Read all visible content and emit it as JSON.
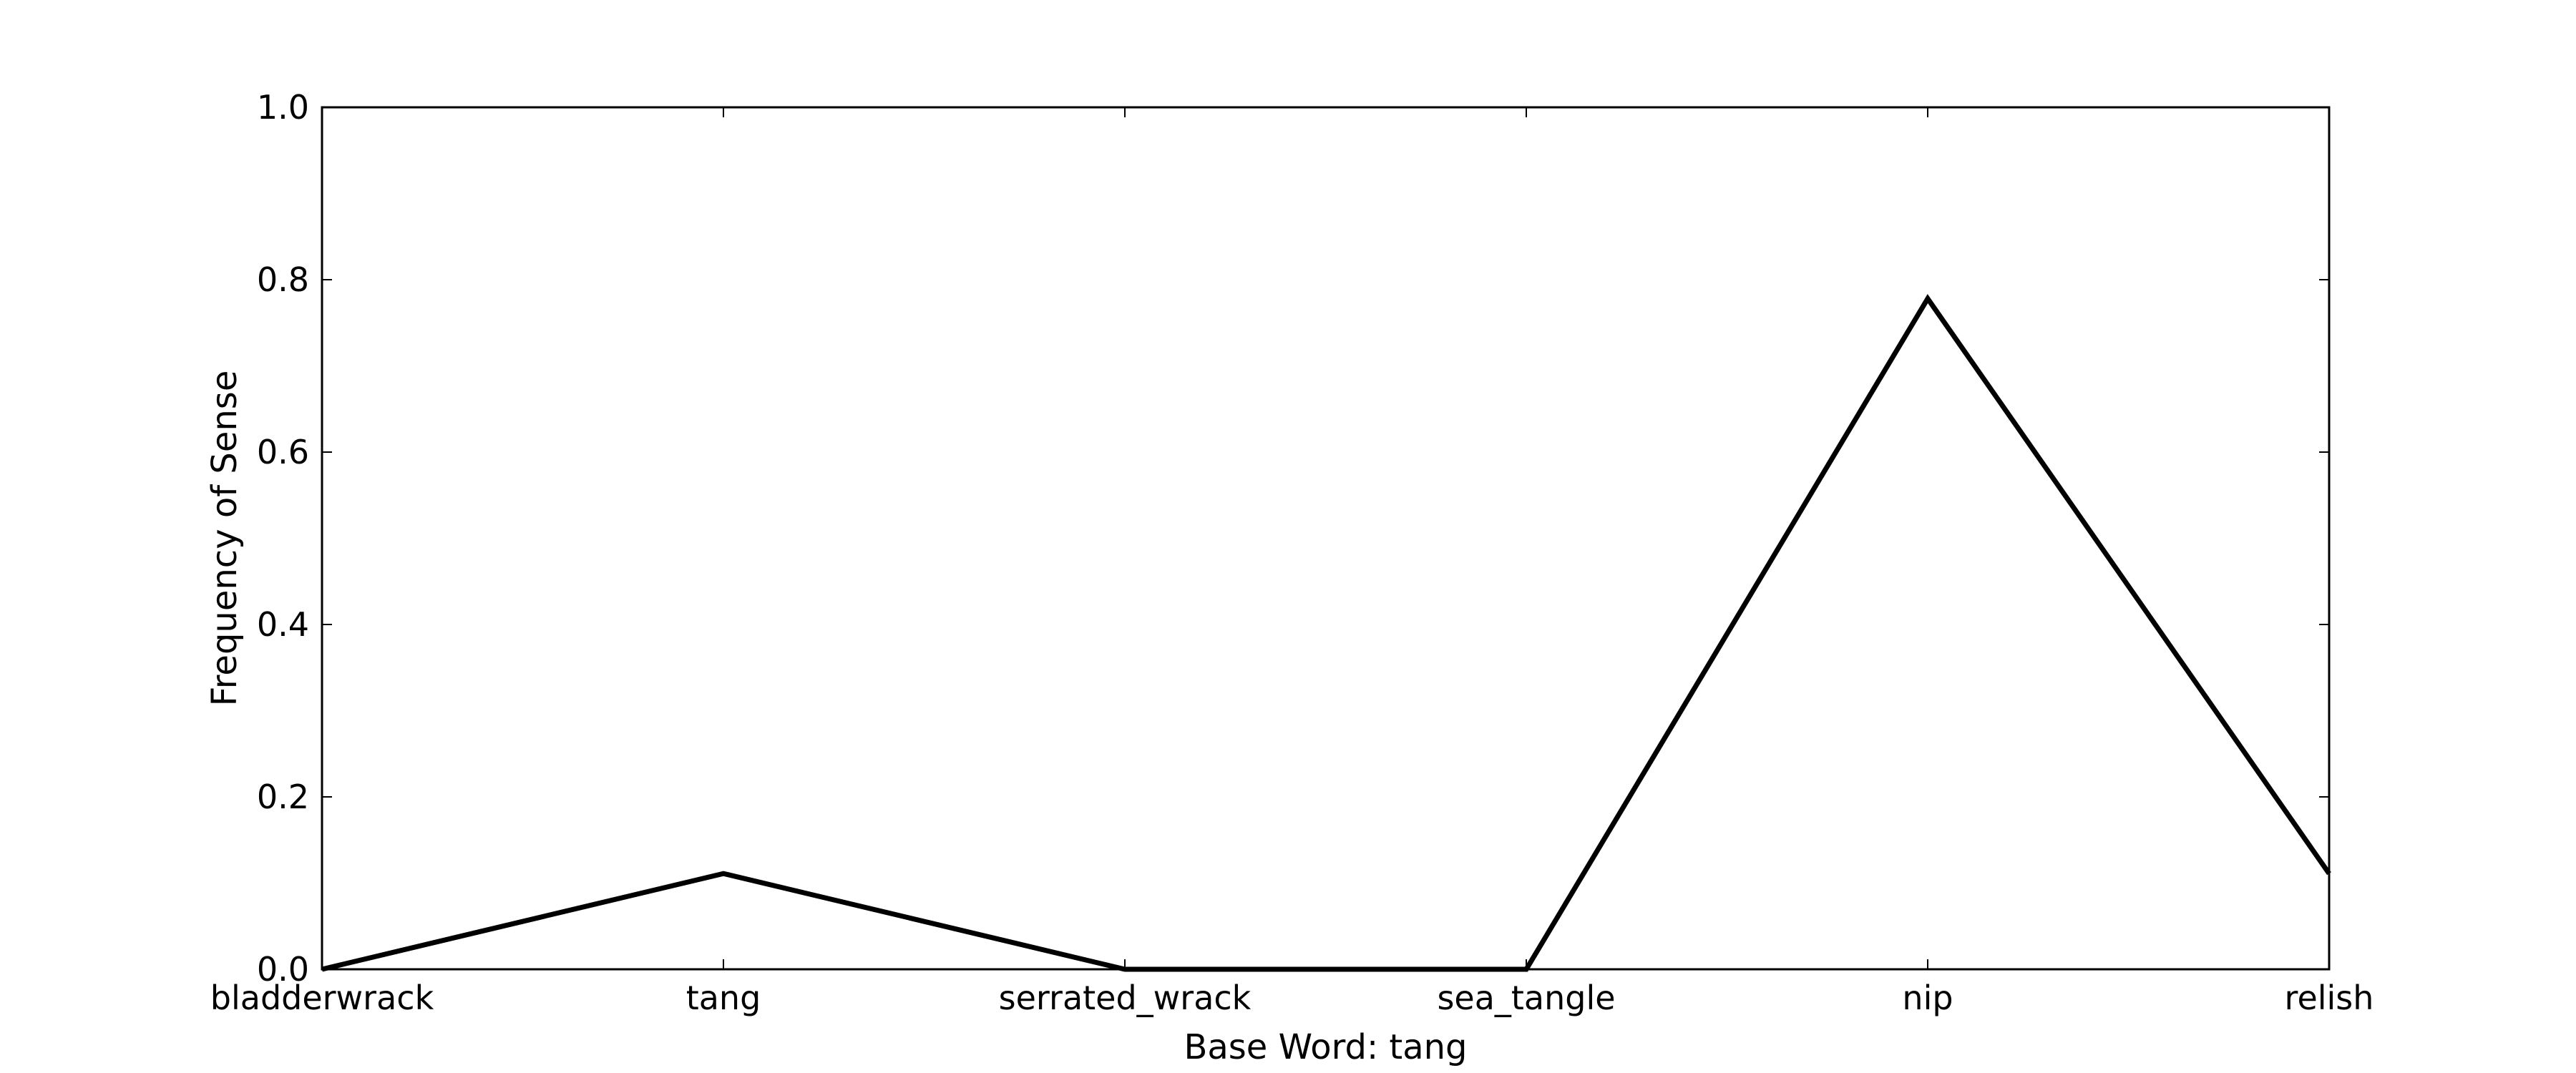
{
  "chart_data": {
    "type": "line",
    "title": "",
    "xlabel": "Base Word: tang",
    "ylabel": "Frequency of Sense",
    "categories": [
      "bladderwrack",
      "tang",
      "serrated_wrack",
      "sea_tangle",
      "nip",
      "relish"
    ],
    "series": [
      {
        "values": [
          0.0,
          0.111,
          0.0,
          0.0,
          0.778,
          0.111
        ]
      }
    ],
    "ylim": [
      0.0,
      1.0
    ],
    "yticks": [
      "0.0",
      "0.2",
      "0.4",
      "0.6",
      "0.8",
      "1.0"
    ],
    "grid": false,
    "legend": "none",
    "line_color": "#000000"
  }
}
